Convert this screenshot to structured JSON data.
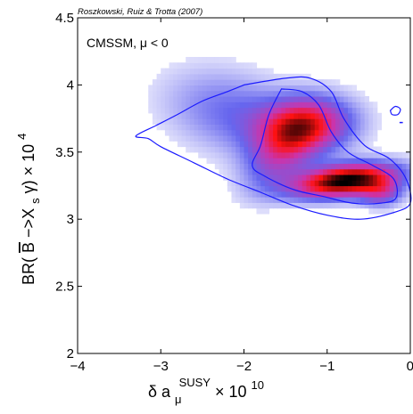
{
  "chart_data": {
    "type": "heatmap",
    "title": "",
    "credit": "Roszkowski, Ruiz & Trotta (2007)",
    "annotation": "CMSSM, μ < 0",
    "xlabel": {
      "base": "δ a",
      "sub": "μ",
      "sup": "SUSY",
      "tail": " × 10",
      "power": "10"
    },
    "ylabel": {
      "pre": "BR(",
      "bbar": "B",
      "mid": "−>X",
      "sub": "s",
      "post": "γ) × 10",
      "power": "4"
    },
    "xlim": [
      -4,
      0
    ],
    "ylim": [
      2,
      4.5
    ],
    "xticks": [
      {
        "value": -4,
        "label": "−4"
      },
      {
        "value": -3,
        "label": "−3"
      },
      {
        "value": -2,
        "label": "−2"
      },
      {
        "value": -1,
        "label": "−1"
      },
      {
        "value": 0,
        "label": "0"
      }
    ],
    "yticks": [
      {
        "value": 2,
        "label": "2"
      },
      {
        "value": 2.5,
        "label": "2.5"
      },
      {
        "value": 3,
        "label": "3"
      },
      {
        "value": 3.5,
        "label": "3.5"
      },
      {
        "value": 4,
        "label": "4"
      },
      {
        "value": 4.5,
        "label": "4.5"
      }
    ],
    "colors": {
      "low": "#ffffff",
      "mid_low": "#6666ee",
      "mid": "#cc33aa",
      "mid_high": "#ff1111",
      "high": "#000000",
      "contour": "#1a1aff"
    },
    "density_components": [
      {
        "cx": -0.78,
        "cy": 3.29,
        "sx": 0.42,
        "sy": 0.085,
        "rho": 0.35,
        "w": 1.0
      },
      {
        "cx": -1.25,
        "cy": 3.7,
        "sx": 0.38,
        "sy": 0.14,
        "rho": 0.1,
        "w": 0.62
      },
      {
        "cx": -1.55,
        "cy": 3.5,
        "sx": 0.3,
        "sy": 0.2,
        "rho": 0.45,
        "w": 0.35
      },
      {
        "cx": -2.15,
        "cy": 3.8,
        "sx": 0.55,
        "sy": 0.22,
        "rho": -0.25,
        "w": 0.22
      },
      {
        "cx": -0.35,
        "cy": 3.2,
        "sx": 0.18,
        "sy": 0.07,
        "rho": 0.0,
        "w": 0.35
      }
    ],
    "contours": [
      {
        "name": "outer",
        "points": [
          [
            -2.0,
            4.0
          ],
          [
            -1.5,
            4.05
          ],
          [
            -1.2,
            4.05
          ],
          [
            -0.95,
            3.95
          ],
          [
            -0.8,
            3.75
          ],
          [
            -0.55,
            3.55
          ],
          [
            -0.25,
            3.45
          ],
          [
            -0.05,
            3.3
          ],
          [
            0.0,
            3.12
          ],
          [
            -0.2,
            3.05
          ],
          [
            -0.6,
            3.0
          ],
          [
            -1.0,
            3.03
          ],
          [
            -1.4,
            3.1
          ],
          [
            -1.8,
            3.2
          ],
          [
            -2.2,
            3.3
          ],
          [
            -2.6,
            3.42
          ],
          [
            -3.0,
            3.54
          ],
          [
            -3.15,
            3.6
          ],
          [
            -3.3,
            3.62
          ],
          [
            -3.05,
            3.7
          ],
          [
            -2.8,
            3.78
          ],
          [
            -2.5,
            3.88
          ],
          [
            -2.2,
            3.95
          ],
          [
            -2.0,
            4.0
          ]
        ]
      },
      {
        "name": "inner",
        "points": [
          [
            -1.55,
            3.97
          ],
          [
            -1.3,
            3.95
          ],
          [
            -1.1,
            3.85
          ],
          [
            -0.95,
            3.65
          ],
          [
            -0.75,
            3.5
          ],
          [
            -0.45,
            3.4
          ],
          [
            -0.2,
            3.3
          ],
          [
            -0.17,
            3.16
          ],
          [
            -0.35,
            3.12
          ],
          [
            -0.7,
            3.12
          ],
          [
            -1.05,
            3.17
          ],
          [
            -1.4,
            3.22
          ],
          [
            -1.75,
            3.32
          ],
          [
            -1.9,
            3.4
          ],
          [
            -1.8,
            3.55
          ],
          [
            -1.7,
            3.78
          ],
          [
            -1.55,
            3.97
          ]
        ]
      },
      {
        "name": "island",
        "points": [
          [
            -0.24,
            3.81
          ],
          [
            -0.18,
            3.84
          ],
          [
            -0.12,
            3.82
          ],
          [
            -0.15,
            3.78
          ],
          [
            -0.22,
            3.78
          ],
          [
            -0.24,
            3.81
          ]
        ]
      }
    ],
    "grid": false,
    "legend": "none"
  }
}
